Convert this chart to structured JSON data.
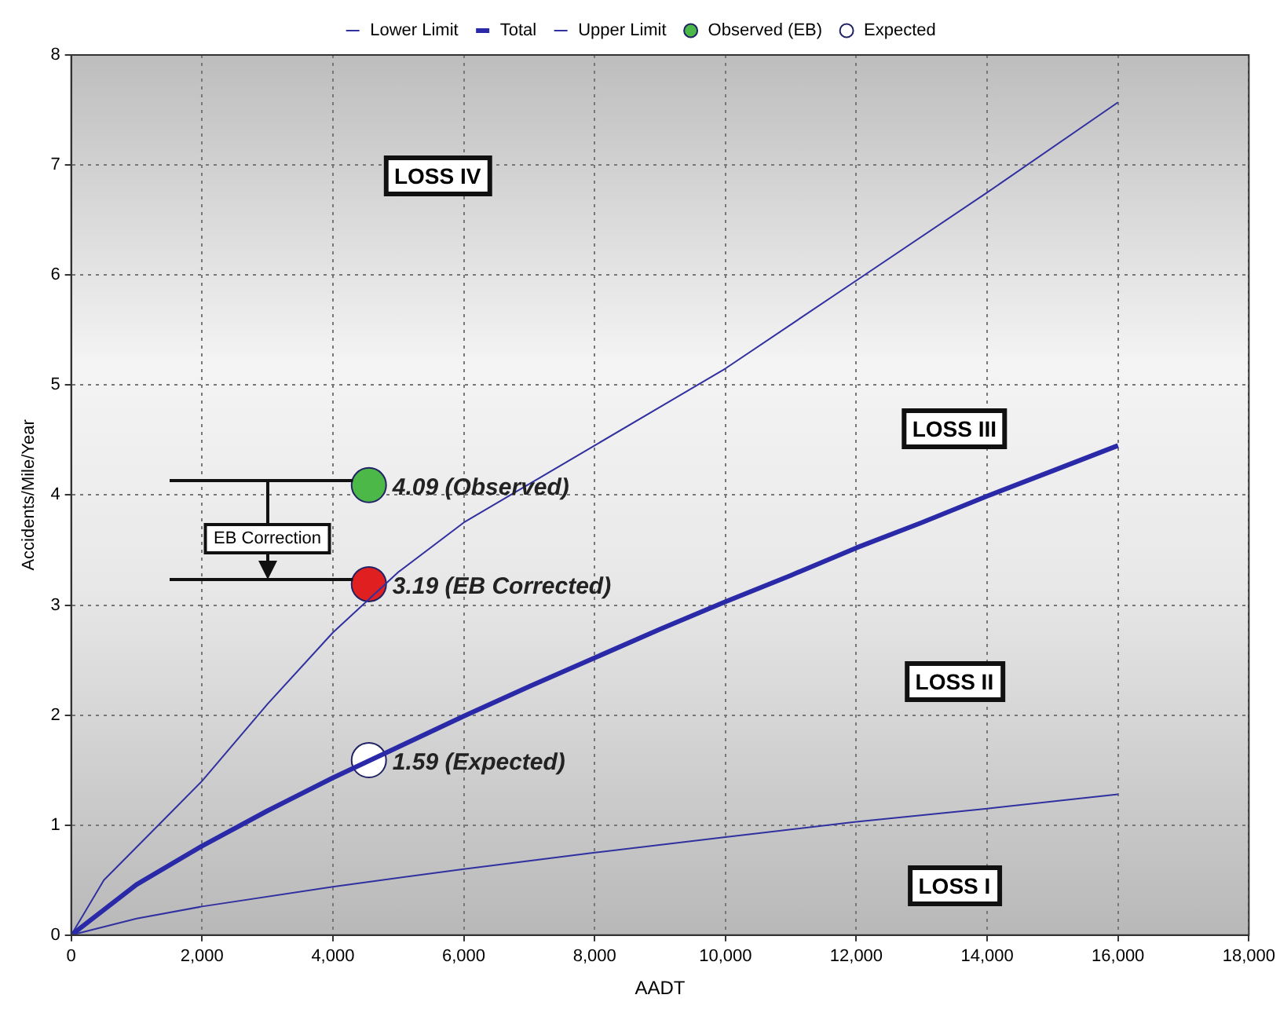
{
  "chart_data": {
    "type": "line",
    "xlabel": "AADT",
    "ylabel": "Accidents/Mile/Year",
    "xlim": [
      0,
      18000
    ],
    "ylim": [
      0,
      8
    ],
    "xticks": [
      0,
      {
        "value": 2000,
        "label": "2,000"
      },
      {
        "value": 4000,
        "label": "4,000"
      },
      {
        "value": 6000,
        "label": "6,000"
      },
      {
        "value": 8000,
        "label": "8,000"
      },
      {
        "value": 10000,
        "label": "10,000"
      },
      {
        "value": 12000,
        "label": "12,000"
      },
      {
        "value": 14000,
        "label": "14,000"
      },
      {
        "value": 16000,
        "label": "16,000"
      },
      {
        "value": 18000,
        "label": "18,000"
      }
    ],
    "yticks": [
      0,
      1,
      2,
      3,
      4,
      5,
      6,
      7,
      8
    ],
    "grid": true,
    "legend": "top",
    "marker": "none",
    "line_style": "solid",
    "series": [
      {
        "name": "Lower Limit",
        "color": "#3030a0",
        "x": [
          0,
          1000,
          2000,
          4000,
          6000,
          8000,
          10000,
          12000,
          14000,
          16000
        ],
        "values": [
          0,
          0.15,
          0.26,
          0.44,
          0.6,
          0.75,
          0.89,
          1.03,
          1.15,
          1.28
        ]
      },
      {
        "name": "Total",
        "color": "#2a2aa8",
        "x": [
          0,
          1000,
          2000,
          3000,
          4000,
          5000,
          6000,
          7000,
          8000,
          9000,
          10000,
          11000,
          12000,
          13000,
          14000,
          15000,
          16000
        ],
        "values": [
          0,
          0.46,
          0.81,
          1.13,
          1.43,
          1.71,
          1.99,
          2.26,
          2.52,
          2.78,
          3.03,
          3.27,
          3.52,
          3.75,
          3.99,
          4.22,
          4.45
        ]
      },
      {
        "name": "Upper Limit",
        "color": "#3030a0",
        "x": [
          0,
          500,
          1000,
          1500,
          2000,
          3000,
          4000,
          5000,
          6000,
          8000,
          10000,
          12000,
          14000,
          16000
        ],
        "values": [
          0,
          0.5,
          0.8,
          1.1,
          1.4,
          2.1,
          2.75,
          3.3,
          3.75,
          4.45,
          5.15,
          5.95,
          6.75,
          7.57
        ]
      },
      {
        "name": "Observed (EB)",
        "type": "scatter",
        "marker": "circle",
        "color": "#4cb848",
        "x": [
          4550
        ],
        "values": [
          4.09
        ],
        "value_labels": [
          "4.09 (Observed)"
        ]
      },
      {
        "name": "Expected",
        "type": "scatter",
        "marker": "circle",
        "color": "#ffffff",
        "x": [
          4550
        ],
        "values": [
          1.59
        ],
        "value_labels": [
          "1.59 (Expected)"
        ]
      },
      {
        "type": "scatter",
        "marker": "circle",
        "color": "#e02020",
        "x": [
          4550
        ],
        "values": [
          3.19
        ],
        "value_labels": [
          "3.19 (EB Corrected)"
        ]
      }
    ],
    "annotations": [
      "LOSS IV",
      "LOSS III",
      "LOSS II",
      "LOSS I",
      "EB Correction"
    ]
  }
}
